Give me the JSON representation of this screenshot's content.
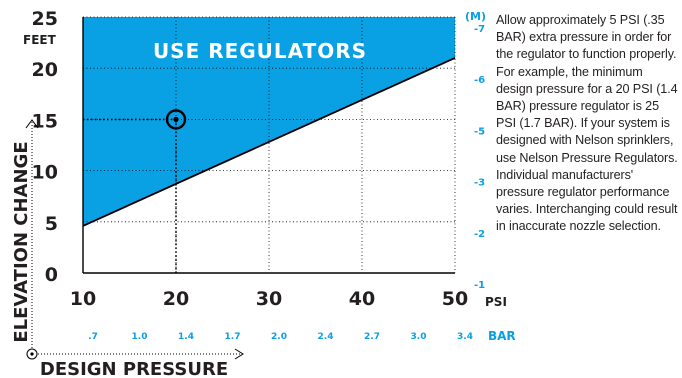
{
  "chart_data": {
    "type": "area",
    "title": "",
    "banner": "USE REGULATORS",
    "xlabel": "DESIGN PRESSURE",
    "ylabel": "ELEVATION CHANGE",
    "x_unit": "PSI",
    "y_unit": "FEET",
    "x_secondary_unit": "BAR",
    "y_secondary_unit": "(M)",
    "xlim": [
      10,
      50
    ],
    "ylim": [
      0,
      25
    ],
    "x_ticks": [
      10,
      20,
      30,
      40,
      50
    ],
    "x_tick_labels": [
      "10",
      "20",
      "30",
      "40",
      "50"
    ],
    "y_ticks": [
      0,
      5,
      10,
      15,
      20,
      25
    ],
    "y_tick_labels": [
      "0",
      "5",
      "10",
      "15",
      "20",
      "25"
    ],
    "bar_ticks": [
      {
        "psi": 10,
        "label": ".7"
      },
      {
        "psi": 15,
        "label": "1.0"
      },
      {
        "psi": 20,
        "label": "1.4"
      },
      {
        "psi": 25,
        "label": "1.7"
      },
      {
        "psi": 30,
        "label": "2.0"
      },
      {
        "psi": 35,
        "label": "2.4"
      },
      {
        "psi": 40,
        "label": "2.7"
      },
      {
        "psi": 45,
        "label": "3.0"
      },
      {
        "psi": 50,
        "label": "3.4"
      }
    ],
    "m_ticks": [
      {
        "feet": 25,
        "label": "-7"
      },
      {
        "feet": 20,
        "label": "-6"
      },
      {
        "feet": 15,
        "label": "-5"
      },
      {
        "feet": 10,
        "label": "-3"
      },
      {
        "feet": 5,
        "label": "-2"
      },
      {
        "feet": 0,
        "label": "-1"
      }
    ],
    "boundary_line": {
      "x": [
        10,
        50
      ],
      "y": [
        4.6,
        21
      ]
    },
    "example_point": {
      "x": 20,
      "y": 15
    },
    "grid": true,
    "colors": {
      "region": "#0aa0e4",
      "accent": "#0aa0e4",
      "line": "#000000",
      "grid": "#000000",
      "text": "#231f20",
      "banner": "#ffffff"
    }
  },
  "note": {
    "text": "Allow approximately 5 PSI (.35 BAR) extra pressure in order for the regulator to function properly. For example, the minimum design pressure for a 20 PSI (1.4 BAR) pressure regulator is 25 PSI (1.7 BAR). If your system is designed with Nelson sprinklers, use Nelson Pressure Regulators. Individual manufacturers' pressure regulator performance varies. Interchanging could result in inaccurate nozzle selection."
  }
}
